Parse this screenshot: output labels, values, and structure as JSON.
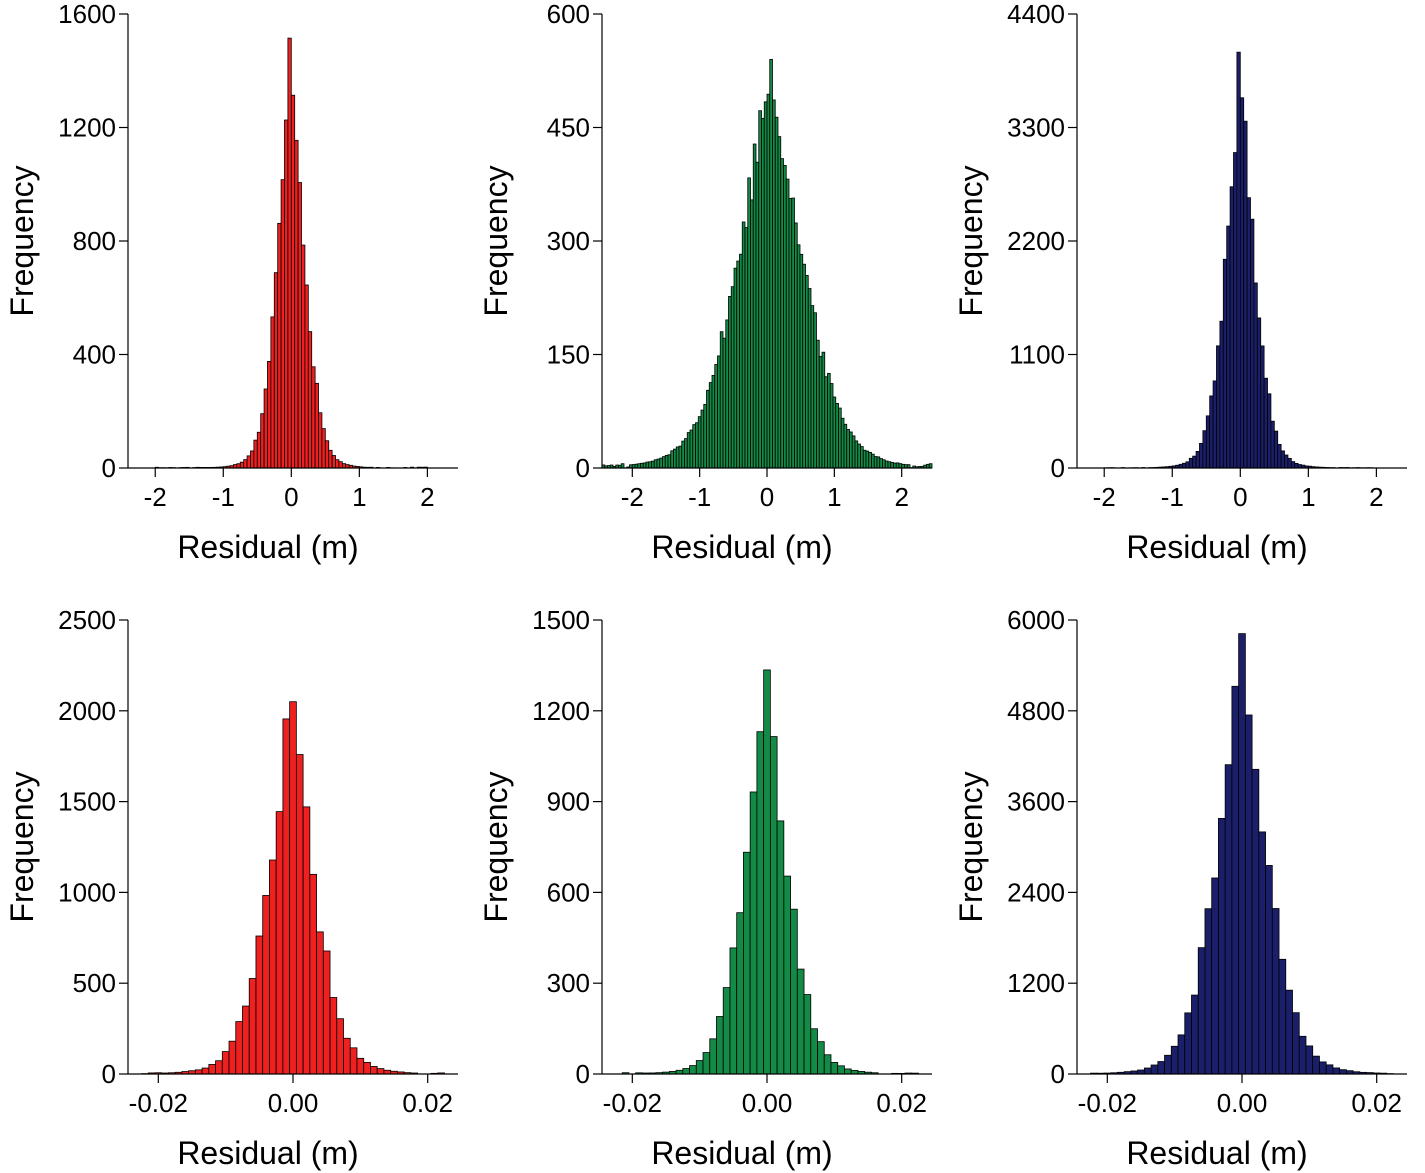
{
  "figure": {
    "layout": "2 rows x 3 columns of histograms"
  },
  "colors": {
    "red": "#ee2020",
    "green": "#138a45",
    "blue": "#1b1f6a",
    "axis": "#000000"
  },
  "chart_data": [
    {
      "id": "top-left",
      "type": "bar",
      "color": "#ee2020",
      "xlabel": "Residual (m)",
      "ylabel": "Frequency",
      "xlim": [
        -2.4,
        2.45
      ],
      "ylim": [
        0,
        1600
      ],
      "xticks": [
        -2,
        -1,
        0,
        1,
        2
      ],
      "xtick_labels": [
        "-2",
        "-1",
        "0",
        "1",
        "2"
      ],
      "yticks": [
        0,
        400,
        800,
        1200,
        1600
      ],
      "ytick_labels": [
        "0",
        "400",
        "800",
        "1200",
        "1600"
      ],
      "distribution": {
        "n_bins": 80,
        "bin_range": [
          -2.0,
          2.0
        ],
        "center": 0.0,
        "spread": 0.22,
        "peak": 1515,
        "tail_floor": 2
      }
    },
    {
      "id": "top-middle",
      "type": "bar",
      "color": "#138a45",
      "xlabel": "Residual (m)",
      "ylabel": "Frequency",
      "xlim": [
        -2.45,
        2.45
      ],
      "ylim": [
        0,
        600
      ],
      "xticks": [
        -2,
        -1,
        0,
        1,
        2
      ],
      "xtick_labels": [
        "-2",
        "-1",
        "0",
        "1",
        "2"
      ],
      "yticks": [
        0,
        150,
        300,
        450,
        600
      ],
      "ytick_labels": [
        "0",
        "150",
        "300",
        "450",
        "600"
      ],
      "distribution": {
        "n_bins": 120,
        "bin_range": [
          -2.45,
          2.45
        ],
        "center": 0.05,
        "spread": 0.55,
        "peak": 540,
        "tail_floor": 4
      }
    },
    {
      "id": "top-right",
      "type": "bar",
      "color": "#1b1f6a",
      "xlabel": "Residual (m)",
      "ylabel": "Frequency",
      "xlim": [
        -2.4,
        2.45
      ],
      "ylim": [
        0,
        4400
      ],
      "xticks": [
        -2,
        -1,
        0,
        1,
        2
      ],
      "xtick_labels": [
        "-2",
        "-1",
        "0",
        "1",
        "2"
      ],
      "yticks": [
        0,
        1100,
        2200,
        3300,
        4400
      ],
      "ytick_labels": [
        "0",
        "1100",
        "2200",
        "3300",
        "4400"
      ],
      "distribution": {
        "n_bins": 80,
        "bin_range": [
          -2.0,
          2.0
        ],
        "center": 0.0,
        "spread": 0.24,
        "peak": 4030,
        "tail_floor": 3
      }
    },
    {
      "id": "bottom-left",
      "type": "bar",
      "color": "#ee2020",
      "xlabel": "Residual (m)",
      "ylabel": "Frequency",
      "xlim": [
        -0.0245,
        0.0245
      ],
      "ylim": [
        0,
        2500
      ],
      "xticks": [
        -0.02,
        0.0,
        0.02
      ],
      "xtick_labels": [
        "-0.02",
        "0.00",
        "0.02"
      ],
      "yticks": [
        0,
        500,
        1000,
        1500,
        2000,
        2500
      ],
      "ytick_labels": [
        "0",
        "500",
        "1000",
        "1500",
        "2000",
        "2500"
      ],
      "distribution": {
        "n_bins": 45,
        "bin_range": [
          -0.0225,
          0.0225
        ],
        "center": -0.0003,
        "spread": 0.004,
        "peak": 2050,
        "tail_floor": 5
      }
    },
    {
      "id": "bottom-middle",
      "type": "bar",
      "color": "#138a45",
      "xlabel": "Residual (m)",
      "ylabel": "Frequency",
      "xlim": [
        -0.0245,
        0.0245
      ],
      "ylim": [
        0,
        1500
      ],
      "xticks": [
        -0.02,
        0.0,
        0.02
      ],
      "xtick_labels": [
        "-0.02",
        "0.00",
        "0.02"
      ],
      "yticks": [
        0,
        300,
        600,
        900,
        1200,
        1500
      ],
      "ytick_labels": [
        "0",
        "300",
        "600",
        "900",
        "1200",
        "1500"
      ],
      "distribution": {
        "n_bins": 45,
        "bin_range": [
          -0.0225,
          0.0225
        ],
        "center": -0.0001,
        "spread": 0.0036,
        "peak": 1335,
        "tail_floor": 3
      }
    },
    {
      "id": "bottom-right",
      "type": "bar",
      "color": "#1b1f6a",
      "xlabel": "Residual (m)",
      "ylabel": "Frequency",
      "xlim": [
        -0.0245,
        0.0245
      ],
      "ylim": [
        0,
        6000
      ],
      "xticks": [
        -0.02,
        0.0,
        0.02
      ],
      "xtick_labels": [
        "-0.02",
        "0.00",
        "0.02"
      ],
      "yticks": [
        0,
        1200,
        2400,
        3600,
        4800,
        6000
      ],
      "ytick_labels": [
        "0",
        "1200",
        "2400",
        "3600",
        "4800",
        "6000"
      ],
      "distribution": {
        "n_bins": 45,
        "bin_range": [
          -0.0225,
          0.0225
        ],
        "center": 0.0,
        "spread": 0.0042,
        "peak": 5820,
        "tail_floor": 8
      }
    }
  ]
}
